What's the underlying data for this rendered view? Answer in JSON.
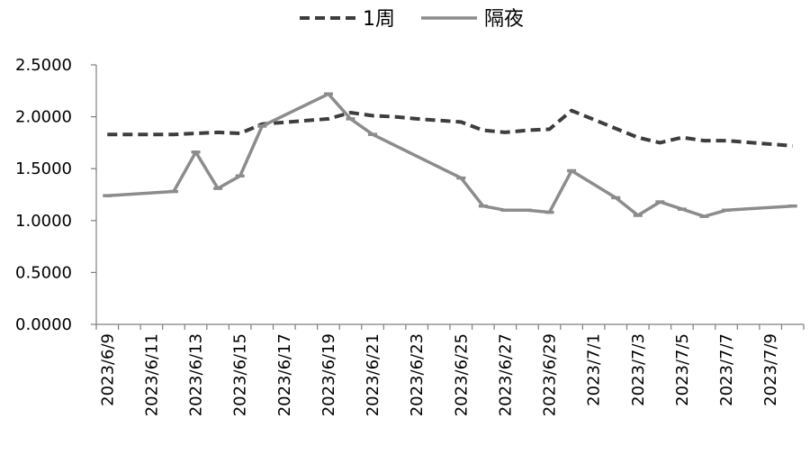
{
  "chart_data": {
    "type": "line",
    "categories": [
      "2023/6/9",
      "2023/6/10",
      "2023/6/11",
      "2023/6/12",
      "2023/6/13",
      "2023/6/14",
      "2023/6/15",
      "2023/6/16",
      "2023/6/17",
      "2023/6/18",
      "2023/6/19",
      "2023/6/20",
      "2023/6/21",
      "2023/6/22",
      "2023/6/23",
      "2023/6/24",
      "2023/6/25",
      "2023/6/26",
      "2023/6/27",
      "2023/6/28",
      "2023/6/29",
      "2023/6/30",
      "2023/7/1",
      "2023/7/2",
      "2023/7/3",
      "2023/7/4",
      "2023/7/5",
      "2023/7/6",
      "2023/7/7",
      "2023/7/8",
      "2023/7/9",
      "2023/7/10"
    ],
    "x_tick_labels": [
      "2023/6/9",
      "2023/6/11",
      "2023/6/13",
      "2023/6/15",
      "2023/6/17",
      "2023/6/19",
      "2023/6/21",
      "2023/6/23",
      "2023/6/25",
      "2023/6/27",
      "2023/6/29",
      "2023/7/1",
      "2023/7/3",
      "2023/7/5",
      "2023/7/7",
      "2023/7/9"
    ],
    "y_tick_labels": [
      "0.0000",
      "0.5000",
      "1.0000",
      "1.5000",
      "2.0000",
      "2.5000"
    ],
    "ylim": [
      0,
      2.5
    ],
    "grid": false,
    "legend_position": "top-center",
    "series": [
      {
        "name": "1周",
        "style": "dashed",
        "color": "#3d3d3d",
        "points": [
          [
            "2023/6/9",
            1.83
          ],
          [
            "2023/6/12",
            1.83
          ],
          [
            "2023/6/13",
            1.84
          ],
          [
            "2023/6/14",
            1.85
          ],
          [
            "2023/6/15",
            1.84
          ],
          [
            "2023/6/16",
            1.93
          ],
          [
            "2023/6/19",
            1.98
          ],
          [
            "2023/6/20",
            2.04
          ],
          [
            "2023/6/21",
            2.01
          ],
          [
            "2023/6/22",
            2.0
          ],
          [
            "2023/6/23",
            1.98
          ],
          [
            "2023/6/25",
            1.95
          ],
          [
            "2023/6/26",
            1.87
          ],
          [
            "2023/6/27",
            1.85
          ],
          [
            "2023/6/28",
            1.87
          ],
          [
            "2023/6/29",
            1.88
          ],
          [
            "2023/6/30",
            2.06
          ],
          [
            "2023/7/3",
            1.8
          ],
          [
            "2023/7/4",
            1.75
          ],
          [
            "2023/7/5",
            1.8
          ],
          [
            "2023/7/6",
            1.77
          ],
          [
            "2023/7/7",
            1.77
          ],
          [
            "2023/7/10",
            1.72
          ]
        ]
      },
      {
        "name": "隔夜",
        "style": "solid",
        "color": "#8c8c8c",
        "points": [
          [
            "2023/6/9",
            1.24
          ],
          [
            "2023/6/12",
            1.28
          ],
          [
            "2023/6/13",
            1.66
          ],
          [
            "2023/6/14",
            1.31
          ],
          [
            "2023/6/15",
            1.43
          ],
          [
            "2023/6/16",
            1.91
          ],
          [
            "2023/6/19",
            2.22
          ],
          [
            "2023/6/20",
            1.98
          ],
          [
            "2023/6/21",
            1.83
          ],
          [
            "2023/6/25",
            1.41
          ],
          [
            "2023/6/26",
            1.14
          ],
          [
            "2023/6/27",
            1.1
          ],
          [
            "2023/6/28",
            1.1
          ],
          [
            "2023/6/29",
            1.08
          ],
          [
            "2023/6/30",
            1.48
          ],
          [
            "2023/7/2",
            1.22
          ],
          [
            "2023/7/3",
            1.05
          ],
          [
            "2023/7/4",
            1.18
          ],
          [
            "2023/7/5",
            1.11
          ],
          [
            "2023/7/6",
            1.04
          ],
          [
            "2023/7/7",
            1.1
          ],
          [
            "2023/7/10",
            1.14
          ]
        ]
      }
    ]
  }
}
